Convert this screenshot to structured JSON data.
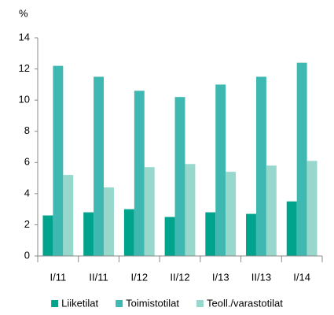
{
  "chart_data": {
    "type": "bar",
    "y_label": "%",
    "categories": [
      "I/11",
      "II/11",
      "I/12",
      "II/12",
      "I/13",
      "II/13",
      "I/14"
    ],
    "series": [
      {
        "name": "Liiketilat",
        "color": "#00a48c",
        "values": [
          2.6,
          2.8,
          3.0,
          2.5,
          2.8,
          2.7,
          3.5
        ]
      },
      {
        "name": "Toimistotilat",
        "color": "#3fb8b2",
        "values": [
          12.2,
          11.5,
          10.6,
          10.2,
          11.0,
          11.5,
          12.4
        ]
      },
      {
        "name": "Teoll./varastotilat",
        "color": "#98d8cc",
        "values": [
          5.2,
          4.4,
          5.7,
          5.9,
          5.4,
          5.8,
          6.1
        ]
      }
    ],
    "ylim": [
      0,
      14
    ],
    "yticks": [
      0,
      2,
      4,
      6,
      8,
      10,
      12,
      14
    ],
    "grid": false,
    "legend": "bottom"
  }
}
